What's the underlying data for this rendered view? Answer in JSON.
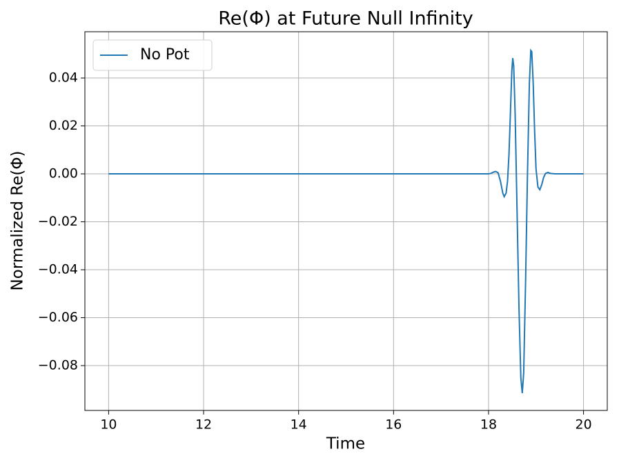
{
  "chart_data": {
    "type": "line",
    "title": "Re(Φ) at Future Null Infinity",
    "x_label": "Time",
    "y_label": "Normalized Re(Φ)",
    "x": [
      10,
      18.0,
      18.05,
      18.1,
      18.15,
      18.2,
      18.25,
      18.3,
      18.33,
      18.37,
      18.4,
      18.43,
      18.46,
      18.49,
      18.51,
      18.53,
      18.56,
      18.6,
      18.64,
      18.68,
      18.71,
      18.74,
      18.78,
      18.82,
      18.86,
      18.89,
      18.91,
      18.94,
      18.97,
      19.0,
      19.04,
      19.08,
      19.12,
      19.16,
      19.2,
      19.25,
      19.3,
      19.4,
      20
    ],
    "series": [
      {
        "name": "No Pot",
        "color": "#1f77b4",
        "values": [
          0,
          0,
          0.0002,
          0.0007,
          0.001,
          0.0005,
          -0.003,
          -0.008,
          -0.0095,
          -0.008,
          -0.003,
          0.008,
          0.025,
          0.043,
          0.0483,
          0.045,
          0.025,
          -0.015,
          -0.055,
          -0.085,
          -0.0915,
          -0.083,
          -0.045,
          0.0,
          0.038,
          0.0515,
          0.051,
          0.038,
          0.018,
          0.002,
          -0.0055,
          -0.0066,
          -0.0045,
          -0.0015,
          0.0002,
          0.0006,
          0.0002,
          0,
          0
        ]
      }
    ],
    "xlim": [
      9.5,
      20.5
    ],
    "ylim": [
      -0.0987,
      0.0593
    ],
    "xticks": [
      10,
      12,
      14,
      16,
      18,
      20
    ],
    "yticks": [
      {
        "value": -0.08,
        "label": "−0.08"
      },
      {
        "value": -0.06,
        "label": "−0.06"
      },
      {
        "value": -0.04,
        "label": "−0.04"
      },
      {
        "value": -0.02,
        "label": "−0.02"
      },
      {
        "value": 0,
        "label": "0.00"
      },
      0.02,
      0.04
    ],
    "grid": true,
    "legend": "upper-left"
  }
}
